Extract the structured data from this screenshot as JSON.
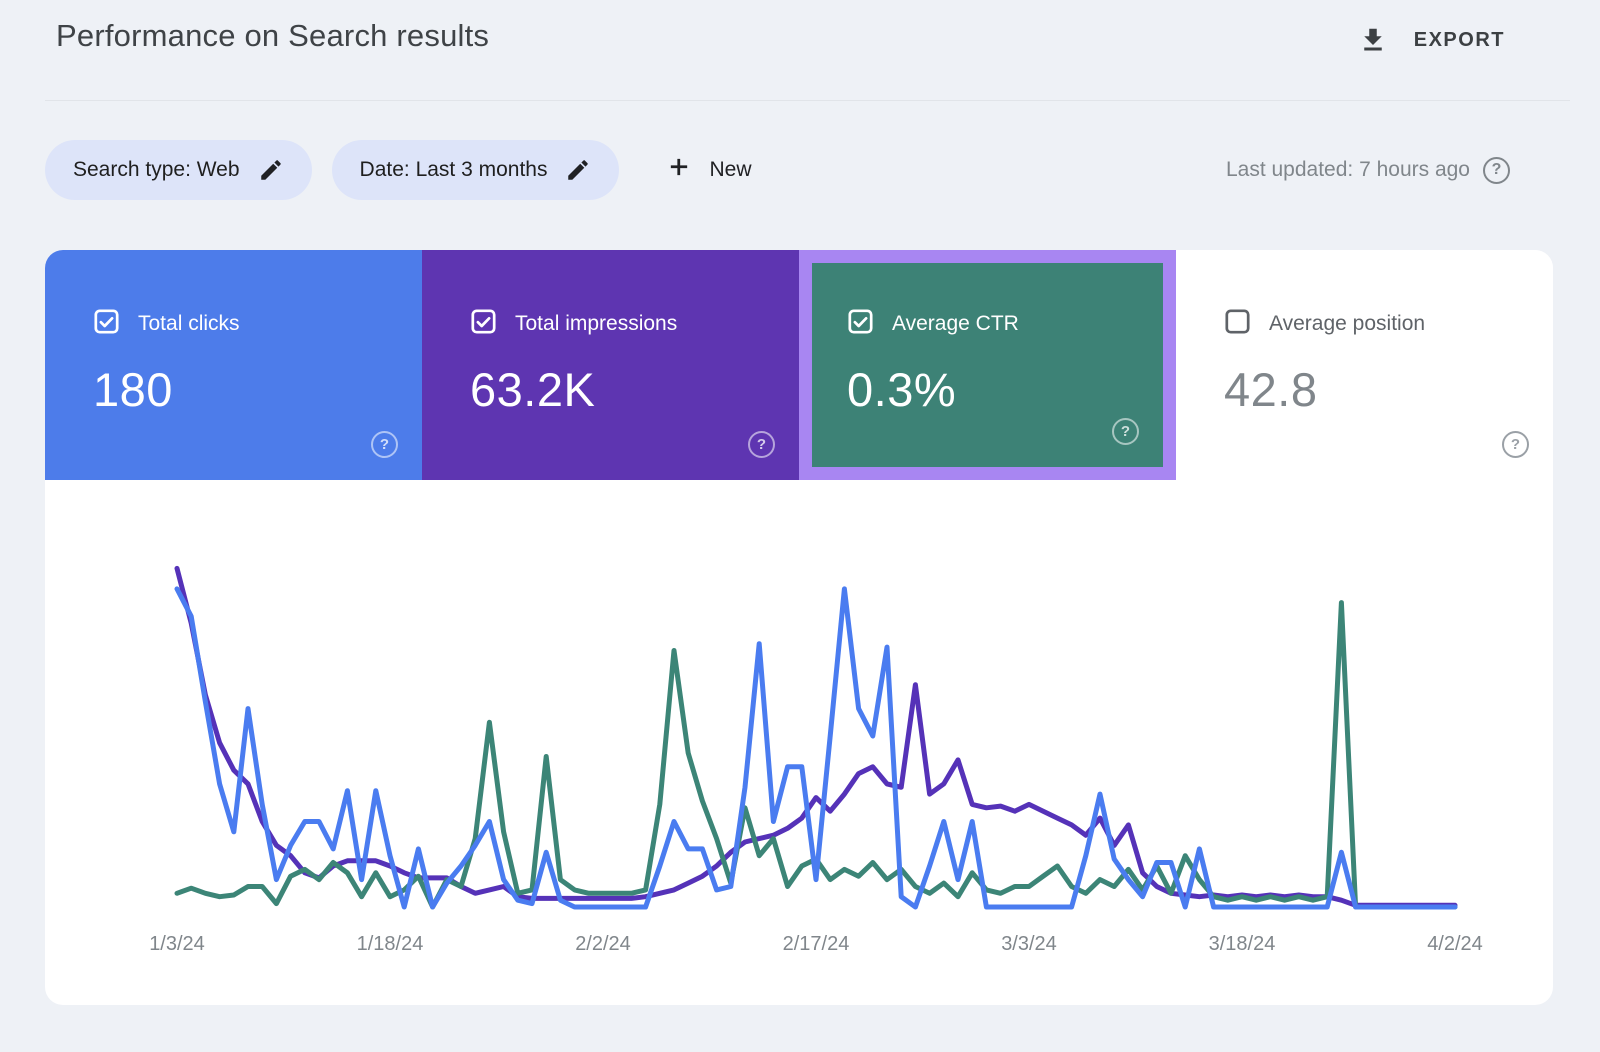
{
  "header": {
    "title": "Performance on Search results",
    "export_label": "EXPORT"
  },
  "filters": {
    "search_type_chip": "Search type: Web",
    "date_chip": "Date: Last 3 months",
    "new_button": "New",
    "last_updated": "Last updated: 7 hours ago"
  },
  "icons": {
    "help": "?"
  },
  "colors": {
    "page_background": "#eef1f6",
    "card_background": "#ffffff",
    "chip_background": "#dde4f9",
    "clicks_blue": "#4d7cea",
    "impressions_purple": "#5e35b1",
    "ctr_teal": "#3d8276",
    "highlight_border": "#a886f2",
    "muted_text": "#80868b",
    "dark_text": "#3c4043"
  },
  "metric_cards": [
    {
      "label": "Total clicks",
      "value": "180",
      "checked": true,
      "bg": "#4d7cea",
      "highlighted": false
    },
    {
      "label": "Total impressions",
      "value": "63.2K",
      "checked": true,
      "bg": "#5e35b1",
      "highlighted": false
    },
    {
      "label": "Average CTR",
      "value": "0.3%",
      "checked": true,
      "bg": "#3d8276",
      "highlighted": true,
      "highlight_border": "#a886f2"
    },
    {
      "label": "Average position",
      "value": "42.8",
      "checked": false,
      "bg": "#ffffff",
      "highlighted": false
    }
  ],
  "chart_data": {
    "type": "line",
    "title": "",
    "xlabel": "",
    "ylabel": "",
    "grid": false,
    "legend_position": "none (series colors match the metric cards above)",
    "x_unit": "1 point per day, 1/3/24 through 4/2/24 (91 points)",
    "x_tick_labels": [
      "1/3/24",
      "1/18/24",
      "2/2/24",
      "2/17/24",
      "3/3/24",
      "3/18/24",
      "4/2/24"
    ],
    "y_axis_note": "y axis is unlabeled in the UI; values below are relative heights, 0 = baseline, 100 = top of plot",
    "ylim": [
      0,
      100
    ],
    "series": [
      {
        "name": "Total clicks",
        "color": "#4a7cf0",
        "values": [
          93,
          85,
          60,
          36,
          22,
          58,
          30,
          8,
          18,
          25,
          25,
          17,
          34,
          8,
          34,
          15,
          0,
          17,
          0,
          7,
          12,
          18,
          25,
          8,
          2,
          1,
          16,
          2,
          0,
          0,
          0,
          0,
          0,
          0,
          12,
          25,
          17,
          17,
          5,
          6,
          35,
          77,
          25,
          41,
          41,
          8,
          50,
          93,
          58,
          50,
          76,
          3,
          0,
          12,
          25,
          8,
          25,
          0,
          0,
          0,
          0,
          0,
          0,
          0,
          15,
          33,
          14,
          8,
          3,
          13,
          13,
          0,
          17,
          0,
          0,
          0,
          0,
          0,
          0,
          0,
          0,
          0,
          16,
          0,
          0,
          0,
          0,
          0,
          0,
          0,
          0
        ]
      },
      {
        "name": "Total impressions",
        "color": "#5532b8",
        "values": [
          99,
          83,
          62,
          48,
          40,
          36,
          25,
          18,
          15,
          10,
          8.5,
          12,
          13.5,
          13.5,
          13.5,
          12,
          10,
          8.5,
          8.5,
          8.5,
          6,
          4,
          5,
          6,
          3,
          2.5,
          2.5,
          2.5,
          2.5,
          2.5,
          2.5,
          2.5,
          2.5,
          3,
          4,
          5,
          7,
          9,
          12,
          16,
          19,
          20,
          21,
          23,
          26,
          32,
          28,
          33,
          39,
          41,
          36,
          35,
          65,
          33,
          36,
          43,
          30,
          29,
          29.5,
          28,
          30,
          28,
          26,
          24,
          21,
          26,
          18,
          24,
          10,
          6,
          4,
          3.5,
          3,
          3.5,
          3,
          3.5,
          3,
          3.5,
          3,
          3.5,
          3,
          3,
          2,
          0.5,
          0.5,
          0.5,
          0.5,
          0.5,
          0.5,
          0.5,
          0.5
        ]
      },
      {
        "name": "Average CTR",
        "color": "#3c8577",
        "values": [
          4,
          5.5,
          4,
          3,
          3.5,
          6,
          6,
          1,
          9,
          11,
          8,
          13,
          10,
          3,
          10,
          3,
          5,
          9,
          0,
          8,
          6,
          20,
          54,
          22,
          4,
          5,
          44,
          8,
          5,
          4,
          4,
          4,
          4,
          5,
          30,
          75,
          45,
          31,
          20,
          7,
          29,
          15,
          20,
          6,
          12,
          14,
          8,
          11,
          9,
          13,
          8,
          11,
          6,
          4,
          7,
          3,
          10,
          5,
          4,
          6,
          6,
          9,
          12,
          6,
          4,
          8,
          6,
          11,
          5,
          12,
          4,
          15,
          8,
          3,
          2,
          3,
          2,
          3,
          2,
          3,
          2,
          3,
          89,
          0,
          0,
          0,
          0,
          0,
          0,
          0,
          0
        ]
      }
    ]
  }
}
